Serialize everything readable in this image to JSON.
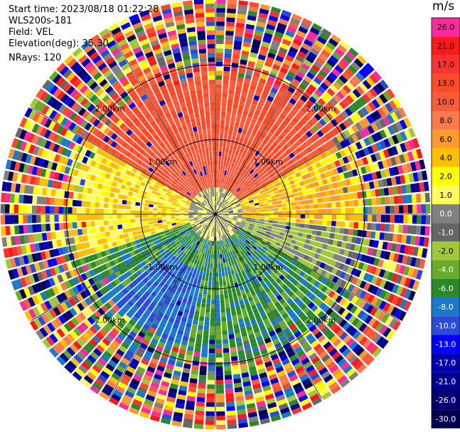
{
  "header": {
    "start_time": "Start time: 2023/08/18 01:22:28",
    "instrument": "WLS200s-181",
    "field": "Field: VEL",
    "elevation": "Elevation(deg): 35.30",
    "nrays": "NRays: 120"
  },
  "colorbar": {
    "unit": "m/s",
    "labels": [
      "26.0",
      "21.0",
      "17.0",
      "13.0",
      "10.0",
      "8.0",
      "6.0",
      "4.0",
      "2.0",
      "1.0",
      "0.0",
      "-1.0",
      "-2.0",
      "-4.0",
      "-6.0",
      "-8.0",
      "-10.0",
      "-13.0",
      "-17.0",
      "-21.0",
      "-26.0",
      "-30.0"
    ],
    "colors": [
      "#ff2a9c",
      "#ff1a1a",
      "#ff3030",
      "#ff4a2a",
      "#ff5a3a",
      "#ff7a4a",
      "#ff9a30",
      "#ffc000",
      "#ffff00",
      "#ffff60",
      "#808080",
      "#666666",
      "#a0c83a",
      "#6aaa2a",
      "#2a8a2a",
      "#1a7ac8",
      "#2a4ad8",
      "#0000ff",
      "#0000b0",
      "#000090",
      "#000070",
      "#000050"
    ]
  },
  "chart_data": {
    "type": "ppi",
    "field": "VEL",
    "nrays": 120,
    "range_rings_km": [
      1.0,
      2.0
    ],
    "ring_labels": [
      "1.00km",
      "2.00km"
    ],
    "vmin": -30.0,
    "vmax": 26.0,
    "bands": [
      {
        "azimuth_deg": [
          300,
          60
        ],
        "range_km": [
          0,
          2.2
        ],
        "velocity": 10.0
      },
      {
        "azimuth_deg": [
          60,
          95
        ],
        "range_km": [
          0,
          2.2
        ],
        "velocity": 3.0
      },
      {
        "azimuth_deg": [
          240,
          300
        ],
        "range_km": [
          0,
          2.2
        ],
        "velocity": 2.0
      },
      {
        "azimuth_deg": [
          95,
          120
        ],
        "range_km": [
          0,
          2.2
        ],
        "velocity": -2.0
      },
      {
        "azimuth_deg": [
          120,
          250
        ],
        "range_km": [
          0,
          2.2
        ],
        "velocity": -7.0
      },
      {
        "azimuth_deg": [
          190,
          230
        ],
        "range_km": [
          0.8,
          1.8
        ],
        "velocity": -10.0
      }
    ],
    "noise_beyond_km": 2.2,
    "max_range_km": 2.85
  }
}
